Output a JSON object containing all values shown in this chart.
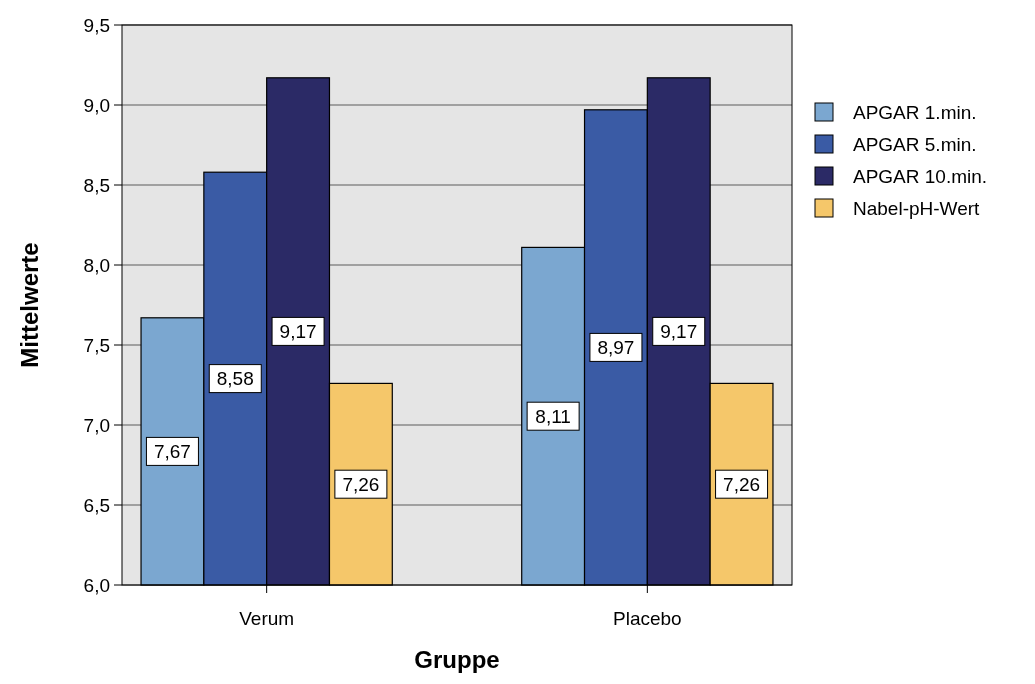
{
  "chart_data": {
    "type": "bar",
    "xlabel": "Gruppe",
    "ylabel": "Mittelwerte",
    "categories": [
      "Verum",
      "Placebo"
    ],
    "series": [
      {
        "name": "APGAR 1.min.",
        "color": "#7ba7d0",
        "values": [
          7.67,
          8.11
        ],
        "value_labels": [
          "7,67",
          "8,11"
        ]
      },
      {
        "name": "APGAR 5.min.",
        "color": "#3a5ba5",
        "values": [
          8.58,
          8.97
        ],
        "value_labels": [
          "8,58",
          "8,97"
        ]
      },
      {
        "name": "APGAR 10.min.",
        "color": "#2b2a66",
        "values": [
          9.17,
          9.17
        ],
        "value_labels": [
          "9,17",
          "9,17"
        ]
      },
      {
        "name": "Nabel-pH-Wert",
        "color": "#f5c76a",
        "values": [
          7.26,
          7.26
        ],
        "value_labels": [
          "7,26",
          "7,26"
        ]
      }
    ],
    "ylim": [
      6,
      9.5
    ],
    "yticks": [
      {
        "value": 6,
        "label": "6,0"
      },
      {
        "value": 6.5,
        "label": "6,5"
      },
      {
        "value": 7,
        "label": "7,0"
      },
      {
        "value": 7.5,
        "label": "7,5"
      },
      {
        "value": 8,
        "label": "8,0"
      },
      {
        "value": 8.5,
        "label": "8,5"
      },
      {
        "value": 9,
        "label": "9,0"
      },
      {
        "value": 9.5,
        "label": "9,5"
      }
    ],
    "grid": "y",
    "legend": "right"
  }
}
